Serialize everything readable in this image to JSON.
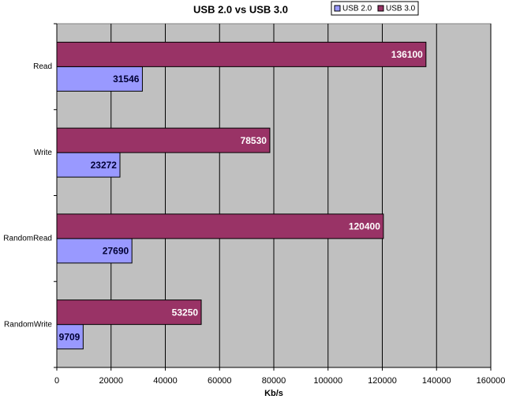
{
  "chart_data": {
    "type": "hbar",
    "title": "USB 2.0 vs USB 3.0",
    "xlabel": "Kb/s",
    "categories": [
      "Read",
      "Write",
      "RandomRead",
      "RandomWrite"
    ],
    "series": [
      {
        "name": "USB 2.0",
        "color": "#9999ff",
        "values": [
          31546,
          23272,
          27690,
          9709
        ]
      },
      {
        "name": "USB 3.0",
        "color": "#993366",
        "values": [
          136100,
          78530,
          120400,
          53250
        ]
      }
    ],
    "xlim": [
      0,
      160000
    ],
    "xticks": [
      0,
      20000,
      40000,
      60000,
      80000,
      100000,
      120000,
      140000,
      160000
    ],
    "grid": true,
    "legend": "top-right"
  }
}
